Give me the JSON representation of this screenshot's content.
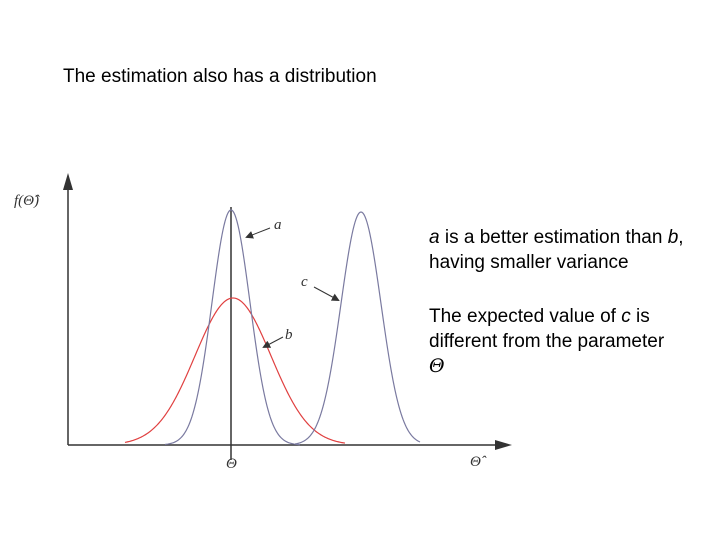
{
  "title": "The estimation also has a distribution",
  "labels": {
    "a": "a",
    "b": "b",
    "c": "c"
  },
  "axes": {
    "y": "f(Θ̂)",
    "parameter": "Θ",
    "x": "Θ̂"
  },
  "notes": [
    [
      "a",
      " is a better estimation than ",
      "b",
      ", having smaller variance"
    ],
    [
      "The expected value of ",
      "c",
      " is different from the parameter",
      "Θ"
    ]
  ]
}
